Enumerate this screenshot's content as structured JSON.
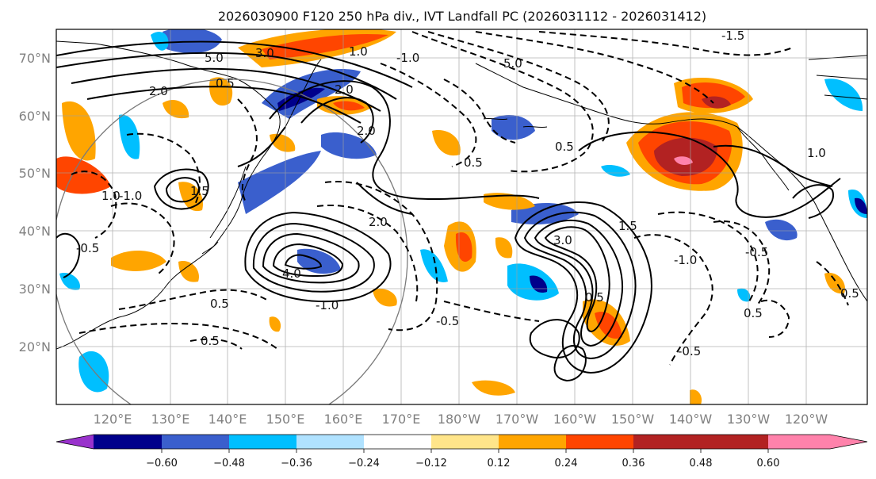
{
  "title": "2026030900 F120 250 hPa div., IVT Landfall PC (2026031112 - 2026031412)",
  "lat_labels": [
    "70°N",
    "60°N",
    "50°N",
    "40°N",
    "30°N",
    "20°N"
  ],
  "lon_labels": [
    "120°E",
    "130°E",
    "140°E",
    "150°E",
    "160°E",
    "170°E",
    "180°W",
    "170°W",
    "160°W",
    "150°W",
    "140°W",
    "130°W",
    "120°W"
  ],
  "colorbar": {
    "ticks": [
      "−0.60",
      "−0.48",
      "−0.36",
      "−0.24",
      "−0.12",
      "0.12",
      "0.24",
      "0.36",
      "0.48",
      "0.60"
    ],
    "colors": [
      "#9932cc",
      "#00008b",
      "#3a5fcd",
      "#00bfff",
      "#b0e2ff",
      "#ffffff",
      "#ffe58a",
      "#ffa500",
      "#ff4500",
      "#b22222",
      "#ff82ab"
    ]
  },
  "contour_labels": [
    "5.0",
    "3.0",
    "2.0",
    "0.5",
    "1.0",
    "2.0",
    "2.0",
    "-1.0",
    "-1.5",
    "5.0",
    "0.5",
    "-1.0",
    "1.5",
    "-0.5",
    "0.5",
    "4.0",
    "2.0",
    "0.5",
    "-1.0",
    "3.0",
    "0.5",
    "-0.5",
    "-1.0",
    "-0.5",
    "0.5",
    "1.0",
    "-0.5",
    "1.5",
    "0.5",
    "1.0",
    "0.5"
  ]
}
